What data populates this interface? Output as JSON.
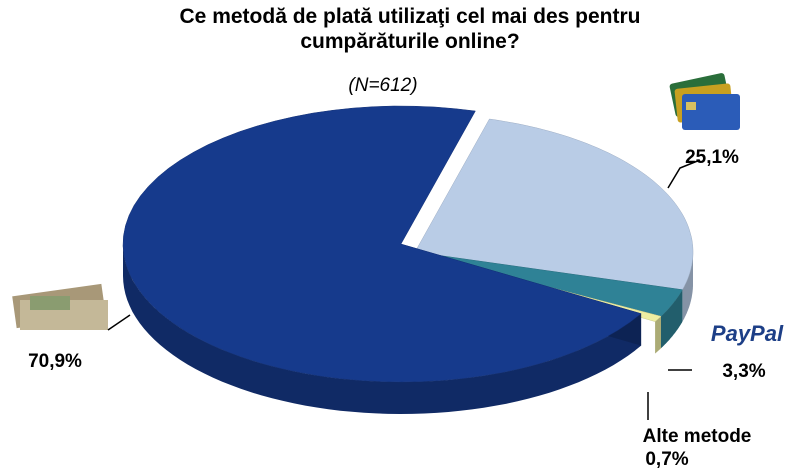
{
  "chart_data": {
    "type": "pie",
    "title": "Ce metodă de plată utilizaţi cel mai des pentru cumpărăturile online?",
    "subtitle": "(N=612)",
    "categories": [
      null,
      "PayPal",
      "Alte metode",
      null
    ],
    "values": [
      25.1,
      3.3,
      0.7,
      70.9
    ],
    "value_labels": [
      "25,1%",
      "3,3%",
      "0,7%",
      "70,9%"
    ],
    "colors": [
      "#b9cce6",
      "#2f8296",
      "#eeeea2",
      "#163a8c"
    ]
  }
}
